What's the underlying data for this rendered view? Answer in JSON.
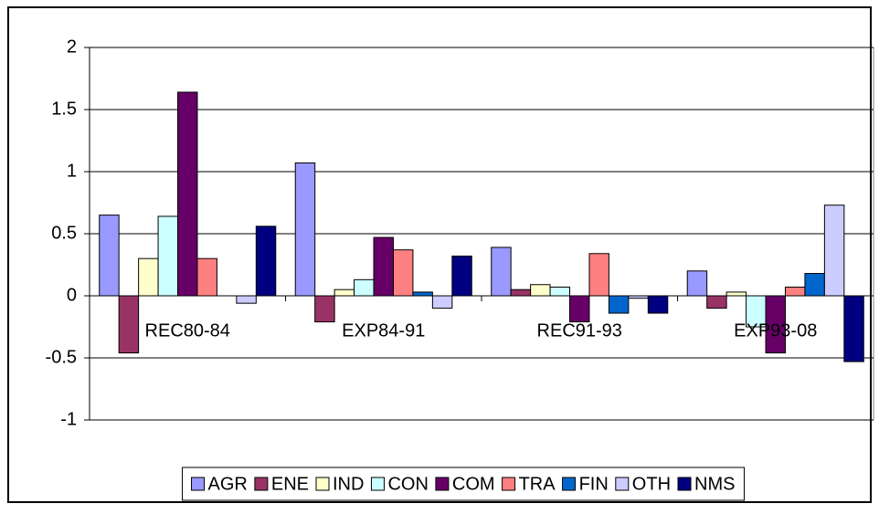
{
  "chart_data": {
    "type": "bar",
    "categories": [
      "REC80-84",
      "EXP84-91",
      "REC91-93",
      "EXP93-08"
    ],
    "series": [
      {
        "name": "AGR",
        "color": "#9999FF",
        "values": [
          0.65,
          1.07,
          0.39,
          0.2
        ]
      },
      {
        "name": "ENE",
        "color": "#993366",
        "values": [
          -0.46,
          -0.21,
          0.05,
          -0.1
        ]
      },
      {
        "name": "IND",
        "color": "#FFFFCC",
        "values": [
          0.3,
          0.05,
          0.09,
          0.03
        ]
      },
      {
        "name": "CON",
        "color": "#CCFFFF",
        "values": [
          0.64,
          0.13,
          0.07,
          -0.25
        ]
      },
      {
        "name": "COM",
        "color": "#660066",
        "values": [
          1.64,
          0.47,
          -0.21,
          -0.46
        ]
      },
      {
        "name": "TRA",
        "color": "#FF8080",
        "values": [
          0.3,
          0.37,
          0.34,
          0.07
        ]
      },
      {
        "name": "FIN",
        "color": "#0066CC",
        "values": [
          0,
          0.03,
          -0.14,
          0.18
        ]
      },
      {
        "name": "OTH",
        "color": "#CCCCFF",
        "values": [
          -0.06,
          -0.1,
          -0.02,
          0.73
        ]
      },
      {
        "name": "NMS",
        "color": "#000080",
        "values": [
          0.56,
          0.32,
          -0.14,
          -0.53
        ]
      }
    ],
    "ylim": [
      -1,
      2
    ],
    "yticks": [
      -1,
      -0.5,
      0,
      0.5,
      1,
      1.5,
      2
    ],
    "grid": true,
    "legend": "bottom"
  }
}
